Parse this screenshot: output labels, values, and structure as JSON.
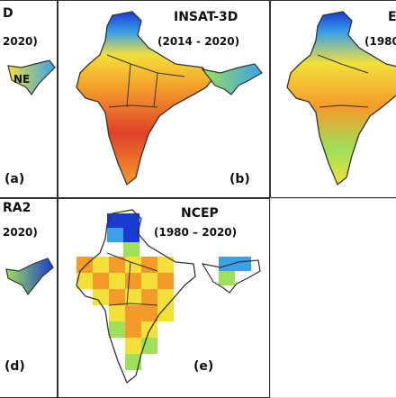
{
  "panels": [
    {
      "id": "a",
      "title": "D",
      "period": "2020)",
      "tag": "(a)",
      "region_label": "NE"
    },
    {
      "id": "b",
      "title": "INSAT-3D",
      "period": "(2014 - 2020)",
      "tag": "(b)"
    },
    {
      "id": "c",
      "title": "E",
      "period": "(1980"
    },
    {
      "id": "d",
      "title": "RA2",
      "period": "2020)",
      "tag": "(d)"
    },
    {
      "id": "e",
      "title": "NCEP",
      "period": "(1980 – 2020)",
      "tag": "(e)"
    }
  ],
  "colors": {
    "hot": "#e0412a",
    "warm": "#f49a2a",
    "mid": "#f3e03a",
    "cool": "#9fe05a",
    "cold": "#3aa0e8",
    "deep": "#1a3bd0"
  }
}
